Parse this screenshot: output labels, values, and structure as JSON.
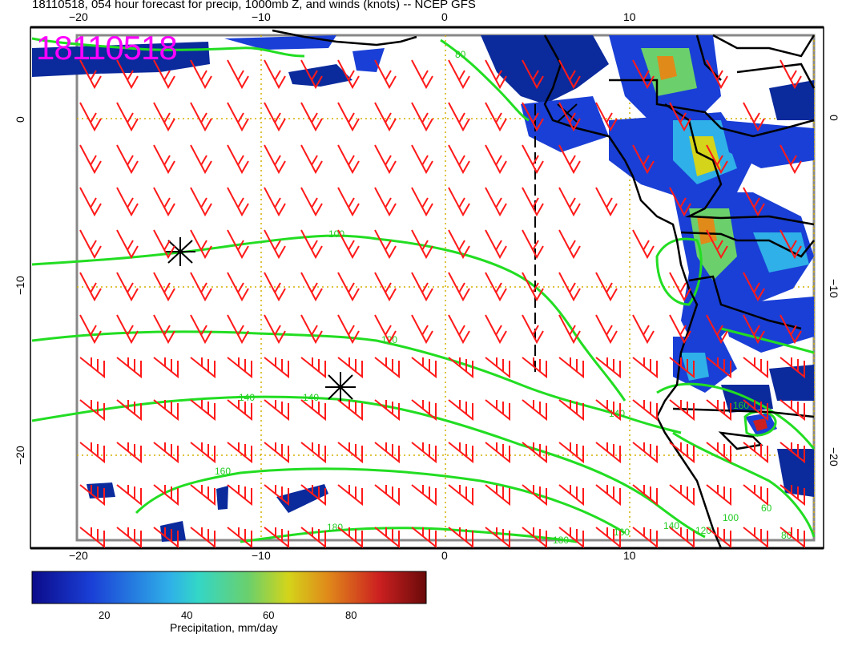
{
  "header": {
    "title": "18110518, 054 hour forecast for precip, 1000mb Z, and winds (knots) -- NCEP GFS",
    "stamp": "18110518"
  },
  "axes": {
    "lon_ticks": [
      "−20",
      "−10",
      "0",
      "10"
    ],
    "lat_ticks": [
      "0",
      "−10",
      "−20"
    ]
  },
  "contours": {
    "labels": [
      "80",
      "100",
      "120",
      "140",
      "140",
      "140",
      "160",
      "160",
      "180",
      "180",
      "140",
      "120",
      "100",
      "80",
      "60",
      "160"
    ]
  },
  "colorbar": {
    "title": "Precipitation, mm/day",
    "ticks": [
      "20",
      "40",
      "60",
      "80"
    ],
    "colors": [
      "#0b0b8a",
      "#1a3fd6",
      "#2fb0e8",
      "#33d6c8",
      "#6bd06b",
      "#d4d41a",
      "#e08a1a",
      "#cc2020",
      "#6a0a0a"
    ]
  },
  "legend_colors": {
    "wind_barb": "#ff1a1a",
    "height_contour": "#22dd22",
    "coastline": "#000000",
    "grid": "#d4b000"
  }
}
